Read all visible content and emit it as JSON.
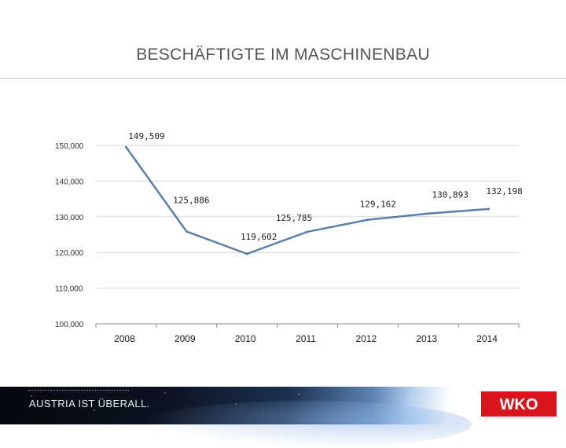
{
  "slide": {
    "title": "BESCHÄFTIGTE IM MASCHINENBAU",
    "slogan": "AUSTRIA IST ÜBERALL.",
    "logo_text": "WKO",
    "colors": {
      "line": "#5b7fa8",
      "title": "#555555",
      "logo_red": "#d8141d"
    }
  },
  "chart_data": {
    "type": "line",
    "title": "",
    "xlabel": "",
    "ylabel": "",
    "categories": [
      "2008",
      "2009",
      "2010",
      "2011",
      "2012",
      "2013",
      "2014"
    ],
    "series": [
      {
        "values": [
          149509,
          125886,
          119602,
          125785,
          129162,
          130893,
          132198
        ]
      }
    ],
    "data_labels": [
      "149,509",
      "125,886",
      "119,602",
      "125,785",
      "129,162",
      "130,893",
      "132,198"
    ],
    "ylim": [
      100000,
      150000
    ],
    "yticks": [
      100000,
      110000,
      120000,
      130000,
      140000,
      150000
    ],
    "ytick_labels": [
      "100,000",
      "110,000",
      "120,000",
      "130,000",
      "140,000",
      "150,000"
    ],
    "grid": true,
    "legend": "none"
  }
}
